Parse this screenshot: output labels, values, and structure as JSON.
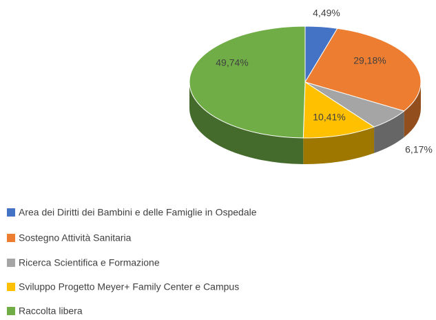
{
  "chart_data": {
    "type": "pie3d",
    "categories": [
      "Area dei Diritti dei Bambini e delle Famiglie in Ospedale",
      "Sostegno Attività Sanitaria",
      "Ricerca Scientifica e Formazione",
      "Sviluppo Progetto Meyer+ Family Center e Campus",
      "Raccolta libera"
    ],
    "values": [
      4.49,
      29.18,
      6.17,
      10.41,
      49.74
    ],
    "value_labels": [
      "4,49%",
      "29,18%",
      "6,17%",
      "10,41%",
      "49,74%"
    ],
    "colors": [
      "#4472c4",
      "#ed7d31",
      "#a5a5a5",
      "#ffc000",
      "#70ad47"
    ],
    "legend": "bottom-left"
  }
}
